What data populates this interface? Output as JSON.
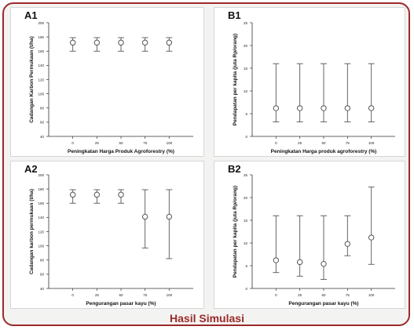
{
  "caption": "Hasil Simulasi",
  "colors": {
    "frame": "#9b2a2a",
    "caption": "#9b2a2a",
    "marks": "#555555"
  },
  "chart_data": [
    {
      "panel": "A1",
      "type": "scatter",
      "xlabel": "Peningkatan Harga Produk Agroforestry (%)",
      "ylabel": "Cadangan Karbon Permukaan (t/ha)",
      "x": [
        "0",
        "25",
        "50",
        "75",
        "100"
      ],
      "ylim": [
        40,
        200
      ],
      "yticks": [
        40,
        60,
        80,
        100,
        120,
        140,
        160,
        180,
        200
      ],
      "values": [
        172,
        172,
        172,
        172,
        172
      ],
      "err_low": [
        160,
        160,
        160,
        160,
        160
      ],
      "err_high": [
        179,
        179,
        179,
        179,
        179
      ]
    },
    {
      "panel": "B1",
      "type": "scatter",
      "xlabel": "Peningkatan Harga produk agroforestry (%)",
      "ylabel": "Pendapatan per kapita (juta Rp/orang)",
      "x": [
        "0",
        "25",
        "50",
        "75",
        "100"
      ],
      "ylim": [
        0,
        25
      ],
      "yticks": [
        0,
        5,
        10,
        15,
        20,
        25
      ],
      "values": [
        6.2,
        6.2,
        6.2,
        6.2,
        6.2
      ],
      "err_low": [
        3.2,
        3.2,
        3.2,
        3.2,
        3.2
      ],
      "err_high": [
        16,
        16,
        16,
        16,
        16
      ]
    },
    {
      "panel": "A2",
      "type": "scatter",
      "xlabel": "Pengurangan pasar kayu (%)",
      "ylabel": "Cadangan karbon permukaan (t/ha)",
      "x": [
        "0",
        "25",
        "50",
        "75",
        "100"
      ],
      "ylim": [
        40,
        200
      ],
      "yticks": [
        40,
        60,
        80,
        100,
        120,
        140,
        160,
        180,
        200
      ],
      "values": [
        172,
        172,
        172,
        141,
        141
      ],
      "err_low": [
        160,
        160,
        160,
        97,
        82
      ],
      "err_high": [
        179,
        179,
        179,
        179,
        179
      ]
    },
    {
      "panel": "B2",
      "type": "scatter",
      "xlabel": "Pengurangan pasar kayu (%)",
      "ylabel": "Pendapatan per kapita (juta Rp/orang)",
      "x": [
        "0",
        "25",
        "50",
        "75",
        "100"
      ],
      "ylim": [
        0,
        25
      ],
      "yticks": [
        0,
        5,
        10,
        15,
        20,
        25
      ],
      "values": [
        6.2,
        5.8,
        5.4,
        9.8,
        11.2
      ],
      "err_low": [
        3.5,
        2.7,
        2.0,
        7.2,
        5.3
      ],
      "err_high": [
        16,
        16,
        16,
        16,
        22.3
      ]
    }
  ]
}
